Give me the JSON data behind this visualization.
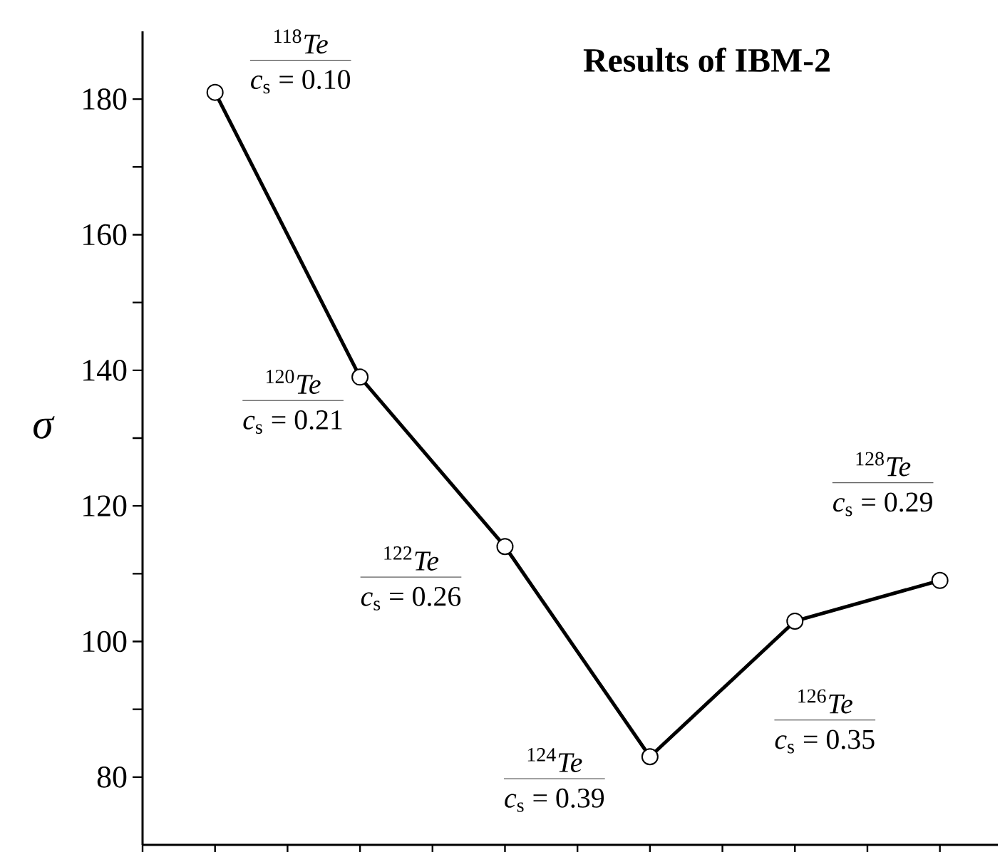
{
  "chart_data": {
    "type": "line",
    "title": "Results of IBM-2",
    "ylabel": "σ",
    "categories": [
      null,
      null,
      null,
      null,
      null,
      null
    ],
    "series": [
      {
        "color": "#000000",
        "values": [
          181,
          139,
          114,
          83,
          103,
          109
        ]
      }
    ],
    "ylim": [
      70,
      190
    ],
    "yticks": [
      80,
      {
        "value": 90,
        "label": null
      },
      100,
      {
        "value": 110,
        "label": null
      },
      120,
      {
        "value": 130,
        "label": null
      },
      140,
      {
        "value": 150,
        "label": null
      },
      160,
      {
        "value": 170,
        "label": null
      },
      180
    ],
    "marker": "circle",
    "line_style": "solid",
    "grid": false,
    "tick_labels": "y",
    "annotations": [
      "$^{118}$*Te*",
      "*c*$_{s}$ = 0.10",
      "$^{120}$*Te*",
      "*c*$_{s}$ = 0.21",
      "$^{122}$*Te*",
      "*c*$_{s}$ = 0.26",
      "$^{124}$*Te*",
      "*c*$_{s}$ = 0.39",
      "$^{126}$*Te*",
      "*c*$_{s}$ = 0.35",
      "$^{128}$*Te*",
      "*c*$_{s}$ = 0.29"
    ]
  }
}
